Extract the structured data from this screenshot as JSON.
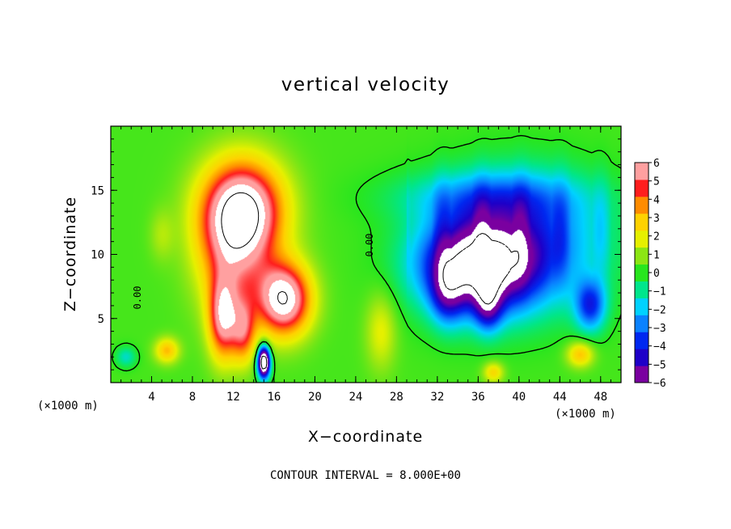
{
  "chart_data": {
    "type": "heatmap",
    "title": "vertical velocity",
    "xlabel": "X−coordinate",
    "ylabel": "Z−coordinate",
    "x_unit": "(×1000 m)",
    "y_unit": "(×1000 m)",
    "x_ticks": [
      4,
      8,
      12,
      16,
      20,
      24,
      28,
      32,
      36,
      40,
      44,
      48
    ],
    "y_ticks": [
      5,
      10,
      15
    ],
    "xlim": [
      0,
      50
    ],
    "ylim": [
      0,
      20
    ],
    "colorbar": {
      "min": -6,
      "max": 6,
      "ticks": [
        6,
        5,
        4,
        3,
        2,
        1,
        0,
        -1,
        -2,
        -3,
        -4,
        -5,
        -6
      ],
      "tick_labels": [
        "6",
        "5",
        "4",
        "3",
        "2",
        "1",
        "0",
        "−1",
        "−2",
        "−3",
        "−4",
        "−5",
        "−6"
      ],
      "colors": [
        "#7a00a0",
        "#1e00c8",
        "#0028f0",
        "#0a82ff",
        "#00d2ff",
        "#00e68c",
        "#28e61e",
        "#8ce614",
        "#e6f000",
        "#ffd200",
        "#ff8c00",
        "#ff1e1e",
        "#ffa0a0"
      ]
    },
    "contour_label": "0.00",
    "contour_interval_text": "CONTOUR INTERVAL = 8.000E+00",
    "field_sources": [
      {
        "x": 13,
        "y": 13.5,
        "sx": 4.0,
        "sy": 3.8,
        "w": 7.0
      },
      {
        "x": 12,
        "y": 10.0,
        "sx": 3.5,
        "sy": 5.0,
        "w": 4.0
      },
      {
        "x": 17,
        "y": 6.5,
        "sx": 2.6,
        "sy": 2.8,
        "w": 7.5
      },
      {
        "x": 11,
        "y": 5.0,
        "sx": 1.4,
        "sy": 3.2,
        "w": 5.5
      },
      {
        "x": 13,
        "y": 4.0,
        "sx": 1.2,
        "sy": 2.5,
        "w": 4.0
      },
      {
        "x": 5.5,
        "y": 2.5,
        "sx": 1.2,
        "sy": 1.0,
        "w": 3.0
      },
      {
        "x": 5,
        "y": 11.5,
        "sx": 1.2,
        "sy": 2.0,
        "w": 1.0
      },
      {
        "x": 15,
        "y": 1.6,
        "sx": 0.6,
        "sy": 1.2,
        "w": -11.0
      },
      {
        "x": 1.5,
        "y": 2.0,
        "sx": 1.0,
        "sy": 0.8,
        "w": -1.8
      },
      {
        "x": 36,
        "y": 9.0,
        "sx": 5.5,
        "sy": 3.5,
        "w": -7.0
      },
      {
        "x": 40,
        "y": 11.0,
        "sx": 8.0,
        "sy": 5.0,
        "w": -4.0
      },
      {
        "x": 37,
        "y": 14.5,
        "sx": 9.0,
        "sy": 2.0,
        "w": -2.0
      },
      {
        "x": 33,
        "y": 7.0,
        "sx": 1.6,
        "sy": 2.5,
        "w": -3.0
      },
      {
        "x": 37,
        "y": 6.0,
        "sx": 1.3,
        "sy": 2.0,
        "w": -3.5
      },
      {
        "x": 47,
        "y": 6.0,
        "sx": 1.5,
        "sy": 2.0,
        "w": -4.0
      },
      {
        "x": 46,
        "y": 2.2,
        "sx": 1.3,
        "sy": 1.0,
        "w": 3.0
      },
      {
        "x": 37.5,
        "y": 0.8,
        "sx": 1.0,
        "sy": 0.8,
        "w": 2.5
      },
      {
        "x": 26.5,
        "y": 4.0,
        "sx": 1.5,
        "sy": 3.0,
        "w": 1.8
      }
    ],
    "sample_values": {
      "description": "approximate field samples",
      "points": [
        {
          "x": 14,
          "y": 12,
          "value": 7.5
        },
        {
          "x": 17,
          "y": 6,
          "value": 7.0
        },
        {
          "x": 15,
          "y": 1.5,
          "value": -5.5
        },
        {
          "x": 35,
          "y": 9,
          "value": -7.5
        },
        {
          "x": 46,
          "y": 2,
          "value": 1.5
        }
      ]
    }
  }
}
